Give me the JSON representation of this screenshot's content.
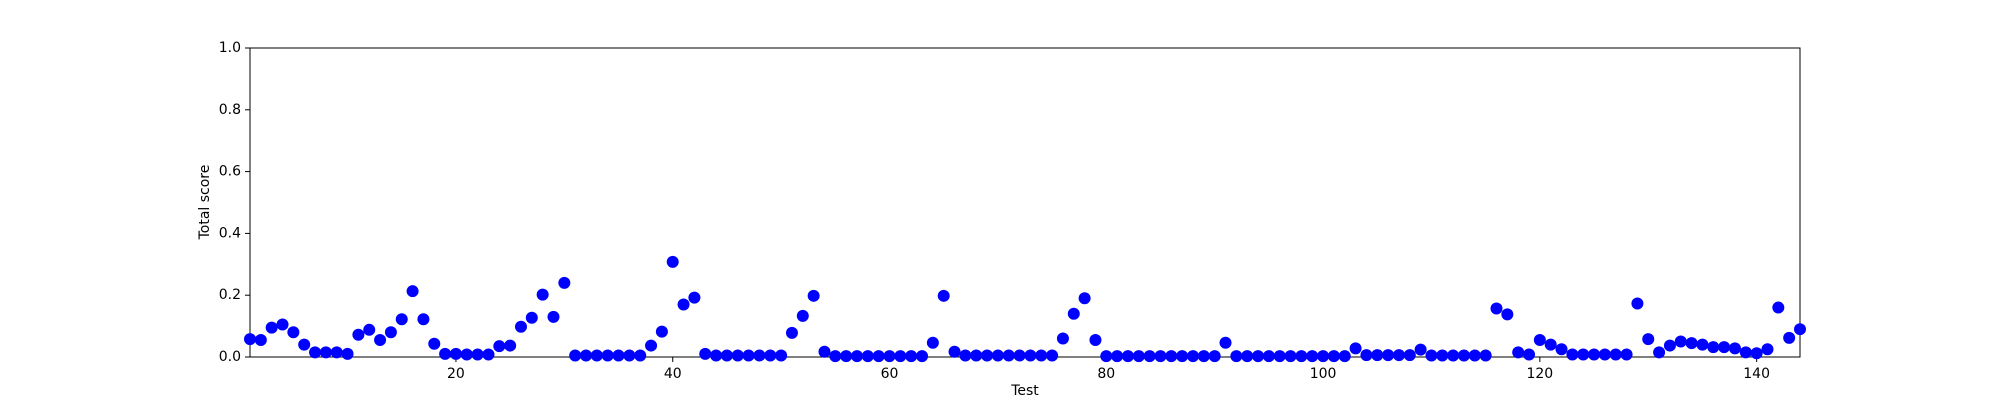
{
  "chart_data": {
    "type": "scatter",
    "xlabel": "Test",
    "ylabel": "Total score",
    "color": "#0000ff",
    "x": [
      1,
      2,
      3,
      4,
      5,
      6,
      7,
      8,
      9,
      10,
      11,
      12,
      13,
      14,
      15,
      16,
      17,
      18,
      19,
      20,
      21,
      22,
      23,
      24,
      25,
      26,
      27,
      28,
      29,
      30,
      31,
      32,
      33,
      34,
      35,
      36,
      37,
      38,
      39,
      40,
      41,
      42,
      43,
      44,
      45,
      46,
      47,
      48,
      49,
      50,
      51,
      52,
      53,
      54,
      55,
      56,
      57,
      58,
      59,
      60,
      61,
      62,
      63,
      64,
      65,
      66,
      67,
      68,
      69,
      70,
      71,
      72,
      73,
      74,
      75,
      76,
      77,
      78,
      79,
      80,
      81,
      82,
      83,
      84,
      85,
      86,
      87,
      88,
      89,
      90,
      91,
      92,
      93,
      94,
      95,
      96,
      97,
      98,
      99,
      100,
      101,
      102,
      103,
      104,
      105,
      106,
      107,
      108,
      109,
      110,
      111,
      112,
      113,
      114,
      115,
      116,
      117,
      118,
      119,
      120,
      121,
      122,
      123,
      124,
      125,
      126,
      127,
      128,
      129,
      130,
      131,
      132,
      133,
      134,
      135,
      136,
      137,
      138,
      139,
      140,
      141,
      142,
      143,
      144
    ],
    "values": [
      0.058,
      0.055,
      0.095,
      0.105,
      0.08,
      0.04,
      0.015,
      0.015,
      0.015,
      0.01,
      0.072,
      0.088,
      0.055,
      0.08,
      0.122,
      0.213,
      0.122,
      0.043,
      0.01,
      0.01,
      0.008,
      0.008,
      0.008,
      0.035,
      0.037,
      0.098,
      0.127,
      0.202,
      0.13,
      0.24,
      0.005,
      0.005,
      0.005,
      0.005,
      0.005,
      0.005,
      0.005,
      0.037,
      0.082,
      0.308,
      0.17,
      0.192,
      0.01,
      0.005,
      0.005,
      0.005,
      0.005,
      0.005,
      0.005,
      0.005,
      0.078,
      0.133,
      0.198,
      0.017,
      0.003,
      0.003,
      0.003,
      0.003,
      0.003,
      0.003,
      0.003,
      0.003,
      0.003,
      0.046,
      0.198,
      0.017,
      0.005,
      0.005,
      0.005,
      0.005,
      0.005,
      0.005,
      0.005,
      0.005,
      0.005,
      0.06,
      0.14,
      0.19,
      0.055,
      0.003,
      0.003,
      0.003,
      0.003,
      0.003,
      0.003,
      0.003,
      0.003,
      0.003,
      0.003,
      0.003,
      0.046,
      0.003,
      0.003,
      0.003,
      0.003,
      0.003,
      0.003,
      0.003,
      0.003,
      0.003,
      0.003,
      0.003,
      0.028,
      0.006,
      0.006,
      0.006,
      0.006,
      0.006,
      0.024,
      0.005,
      0.005,
      0.005,
      0.005,
      0.005,
      0.005,
      0.157,
      0.138,
      0.015,
      0.008,
      0.055,
      0.04,
      0.025,
      0.008,
      0.008,
      0.008,
      0.008,
      0.008,
      0.008,
      0.173,
      0.058,
      0.015,
      0.037,
      0.05,
      0.045,
      0.04,
      0.032,
      0.032,
      0.028,
      0.015,
      0.012,
      0.025,
      0.16,
      0.062,
      0.09
    ],
    "xlim": [
      1,
      144
    ],
    "xticks": [
      20,
      40,
      60,
      80,
      100,
      120,
      140
    ],
    "ylim": [
      0,
      1
    ],
    "yticks": [
      {
        "value": 0,
        "label": "0.0"
      },
      0.2,
      0.4,
      0.6,
      0.8,
      {
        "value": 1,
        "label": "1.0"
      }
    ]
  }
}
